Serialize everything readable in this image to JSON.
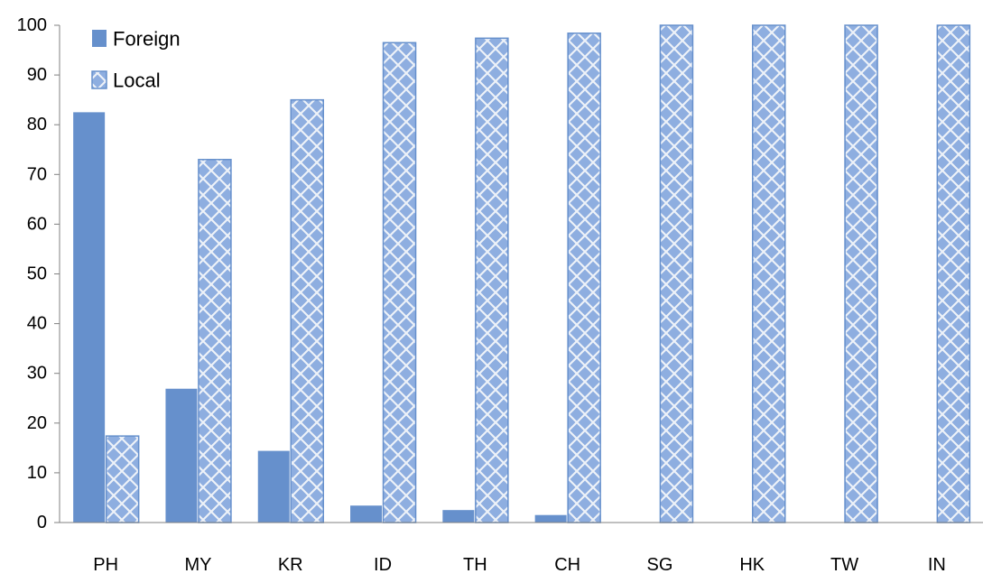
{
  "chart_data": {
    "type": "bar",
    "title": "",
    "xlabel": "",
    "ylabel": "",
    "ylim": [
      0,
      100
    ],
    "yticks": [
      "0",
      "10",
      "20",
      "30",
      "40",
      "50",
      "60",
      "70",
      "80",
      "90",
      "100"
    ],
    "grid": false,
    "legend_position": "top-left",
    "categories": [
      "PH",
      "MY",
      "KR",
      "ID",
      "TH",
      "CH",
      "SG",
      "HK",
      "TW",
      "IN"
    ],
    "series": [
      {
        "name": "Foreign",
        "values": [
          82.6,
          27,
          14.5,
          3.5,
          2.6,
          1.6,
          0,
          0,
          0,
          0
        ],
        "color": "#6690cc",
        "pattern": "solid"
      },
      {
        "name": "Local",
        "values": [
          17.4,
          73,
          85,
          96.5,
          97.4,
          98.4,
          100,
          100,
          100,
          100
        ],
        "color": "#8eaee0",
        "pattern": "diamond"
      }
    ]
  }
}
